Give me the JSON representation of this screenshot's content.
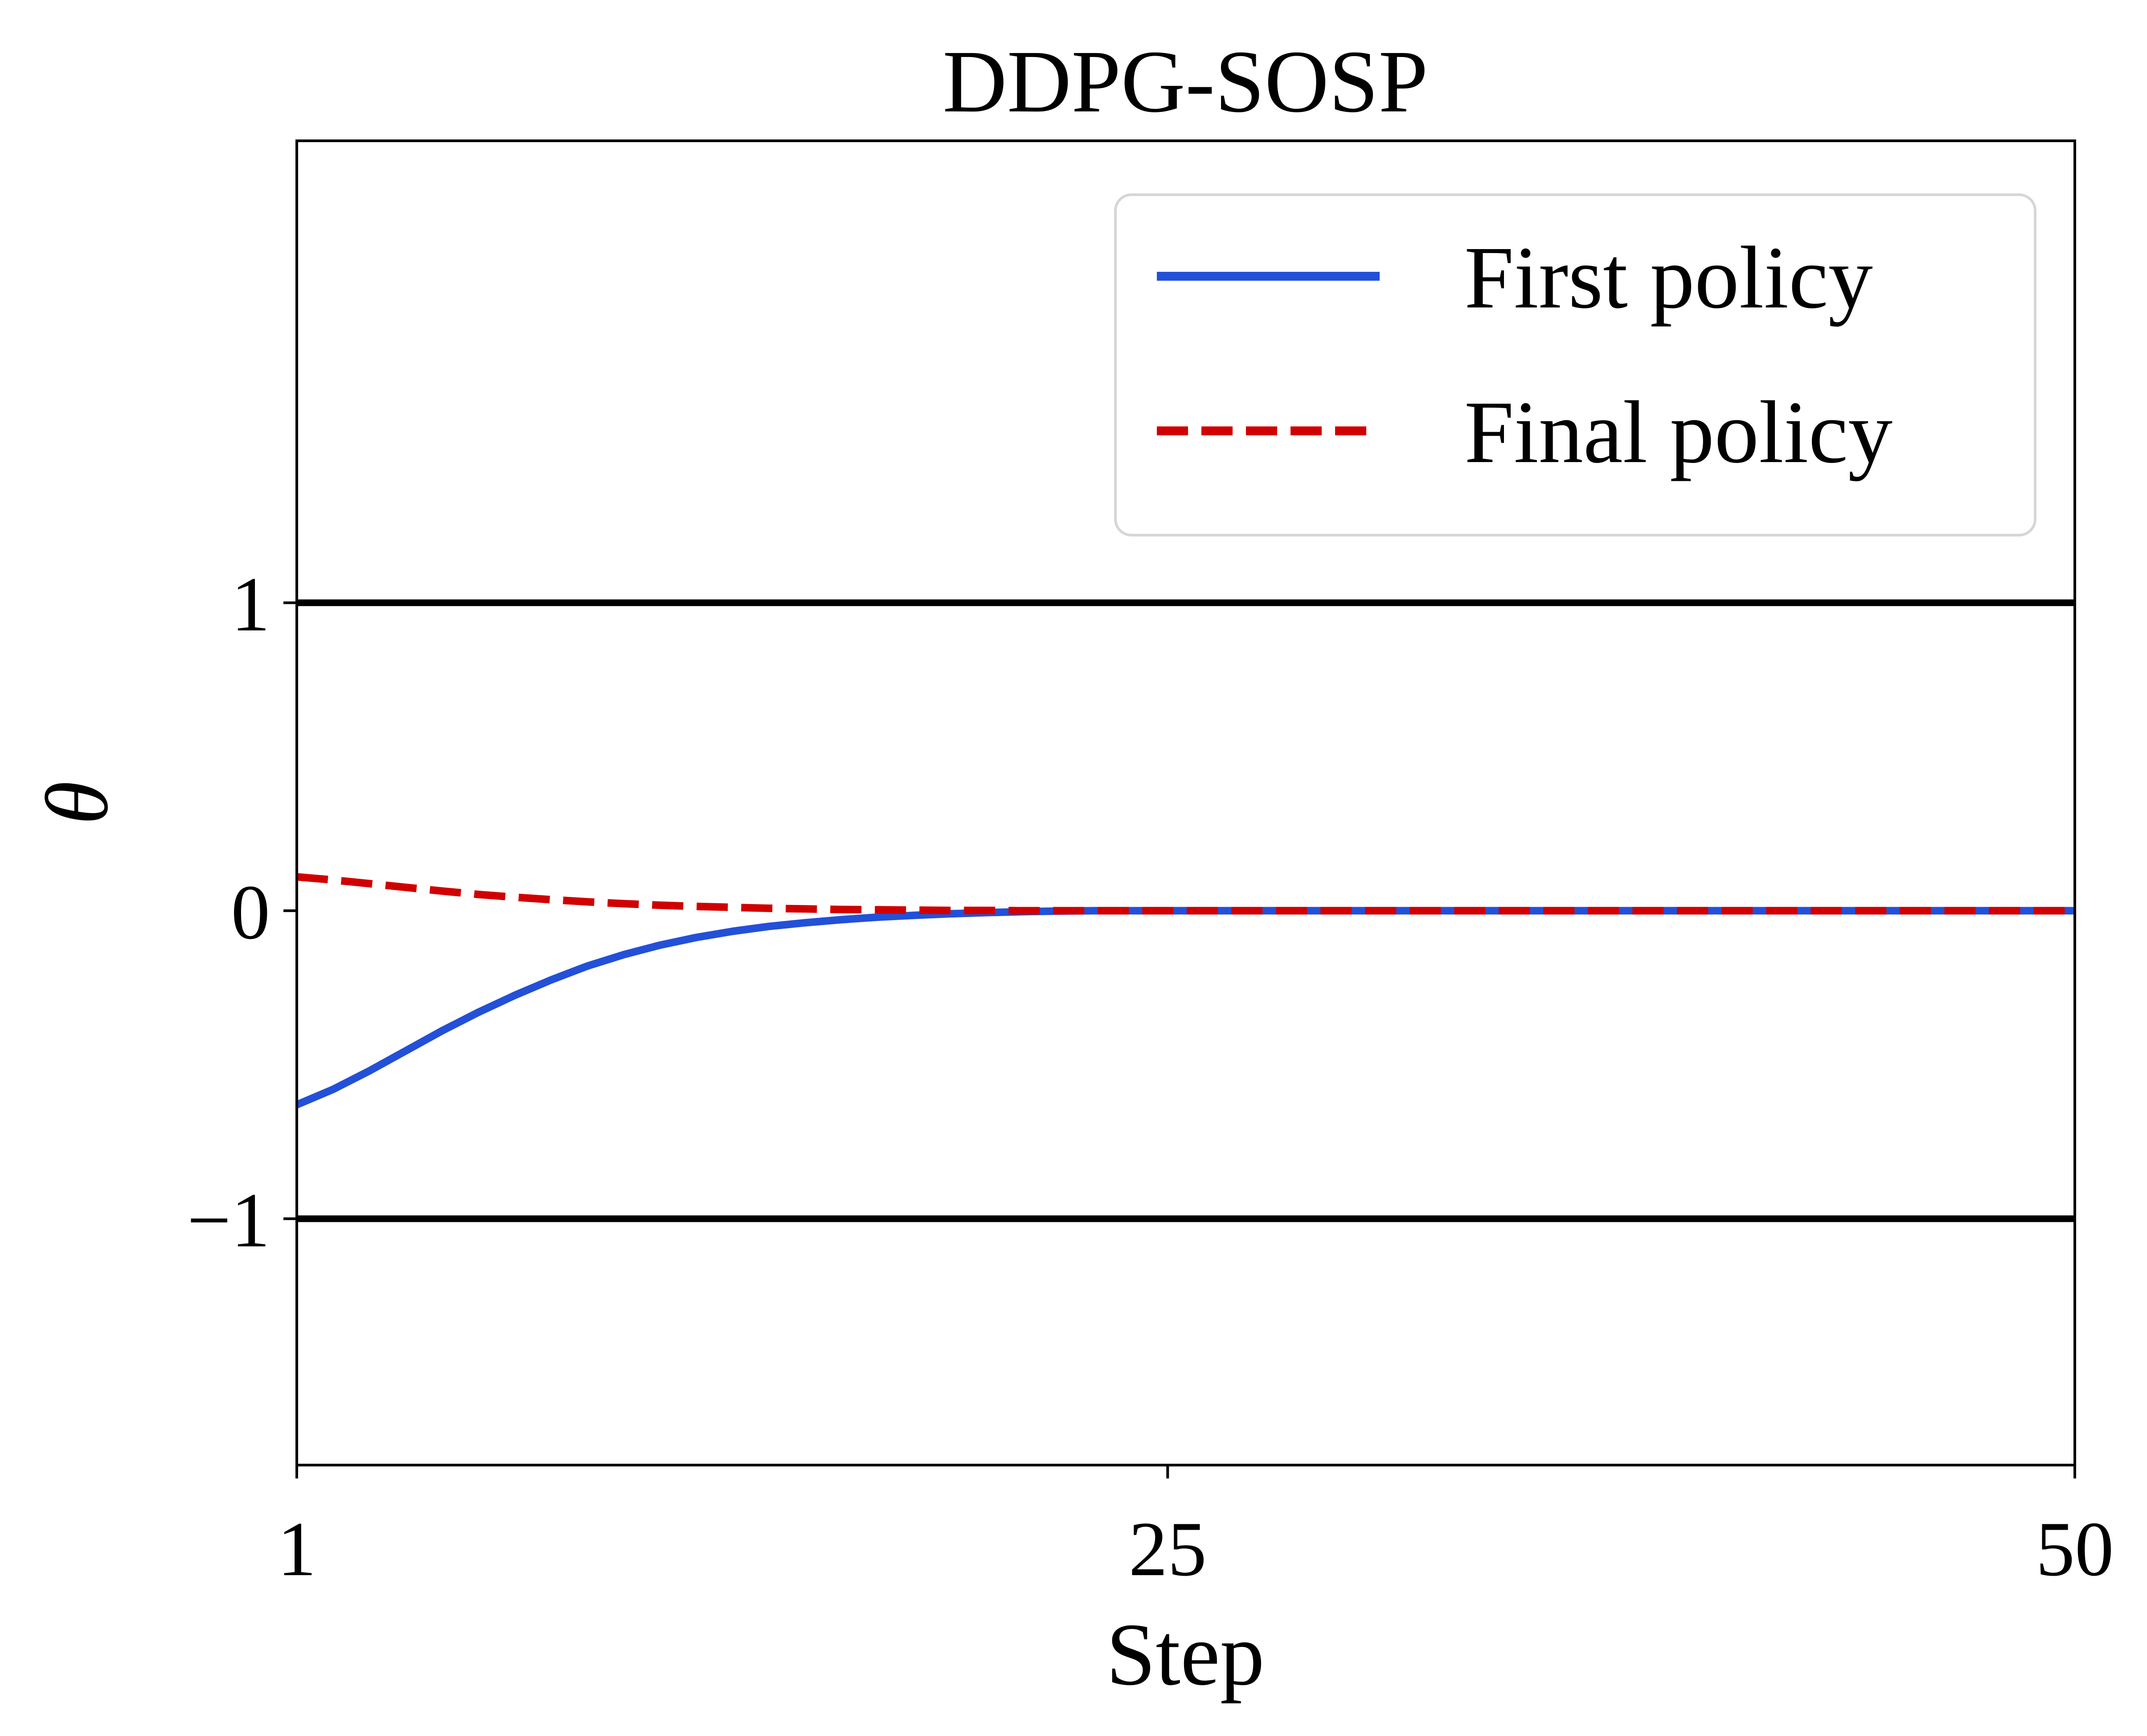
{
  "chart_data": {
    "type": "line",
    "title": "DDPG-SOSP",
    "xlabel": "Step",
    "ylabel": "θ",
    "xlim": [
      1,
      50
    ],
    "ylim": [
      -1.8,
      2.5
    ],
    "xticks": [
      1,
      25,
      50
    ],
    "xtick_labels": [
      "1",
      "25",
      "50"
    ],
    "yticks": [
      -1,
      0,
      1
    ],
    "ytick_labels": [
      "−1",
      "0",
      "1"
    ],
    "grid": false,
    "legend_position": "top-right",
    "reference_lines": [
      {
        "y": 1,
        "color": "#000000"
      },
      {
        "y": -1,
        "color": "#000000"
      }
    ],
    "series": [
      {
        "name": "First policy",
        "style": "solid",
        "color": "#2350d8",
        "x": [
          1,
          2,
          3,
          4,
          5,
          6,
          7,
          8,
          9,
          10,
          11,
          12,
          13,
          14,
          15,
          16,
          17,
          18,
          19,
          20,
          21,
          22,
          23,
          24,
          25,
          26,
          27,
          28,
          29,
          30,
          31,
          32,
          33,
          34,
          35,
          36,
          37,
          38,
          39,
          40,
          41,
          42,
          43,
          44,
          45,
          46,
          47,
          48,
          49,
          50
        ],
        "values": [
          -0.63,
          -0.58,
          -0.52,
          -0.455,
          -0.39,
          -0.33,
          -0.275,
          -0.225,
          -0.18,
          -0.143,
          -0.112,
          -0.087,
          -0.067,
          -0.051,
          -0.039,
          -0.029,
          -0.021,
          -0.015,
          -0.01,
          -0.006,
          -0.003,
          -0.001,
          0.0,
          0.0,
          0.0,
          0.0,
          0.0,
          0.0,
          0.0,
          0.0,
          0.0,
          0.0,
          0.0,
          0.0,
          0.0,
          0.0,
          0.0,
          0.0,
          0.0,
          0.0,
          0.0,
          0.0,
          0.0,
          0.0,
          0.0,
          0.0,
          0.0,
          0.0,
          0.0,
          0.0
        ]
      },
      {
        "name": "Final policy",
        "style": "dashed",
        "color": "#d00000",
        "x": [
          1,
          2,
          3,
          4,
          5,
          6,
          7,
          8,
          9,
          10,
          11,
          12,
          13,
          14,
          15,
          16,
          17,
          18,
          19,
          20,
          21,
          22,
          23,
          24,
          25,
          26,
          27,
          28,
          29,
          30,
          31,
          32,
          33,
          34,
          35,
          36,
          37,
          38,
          39,
          40,
          41,
          42,
          43,
          44,
          45,
          46,
          47,
          48,
          49,
          50
        ],
        "values": [
          0.11,
          0.1,
          0.088,
          0.076,
          0.064,
          0.053,
          0.044,
          0.036,
          0.029,
          0.023,
          0.018,
          0.014,
          0.011,
          0.008,
          0.006,
          0.004,
          0.003,
          0.002,
          0.001,
          0.001,
          0.0,
          0.0,
          0.0,
          0.0,
          0.0,
          0.0,
          0.0,
          0.0,
          0.0,
          0.0,
          0.0,
          0.0,
          0.0,
          0.0,
          0.0,
          0.0,
          0.0,
          0.0,
          0.0,
          0.0,
          0.0,
          0.0,
          0.0,
          0.0,
          0.0,
          0.0,
          0.0,
          0.0,
          0.0,
          0.0
        ]
      }
    ]
  }
}
